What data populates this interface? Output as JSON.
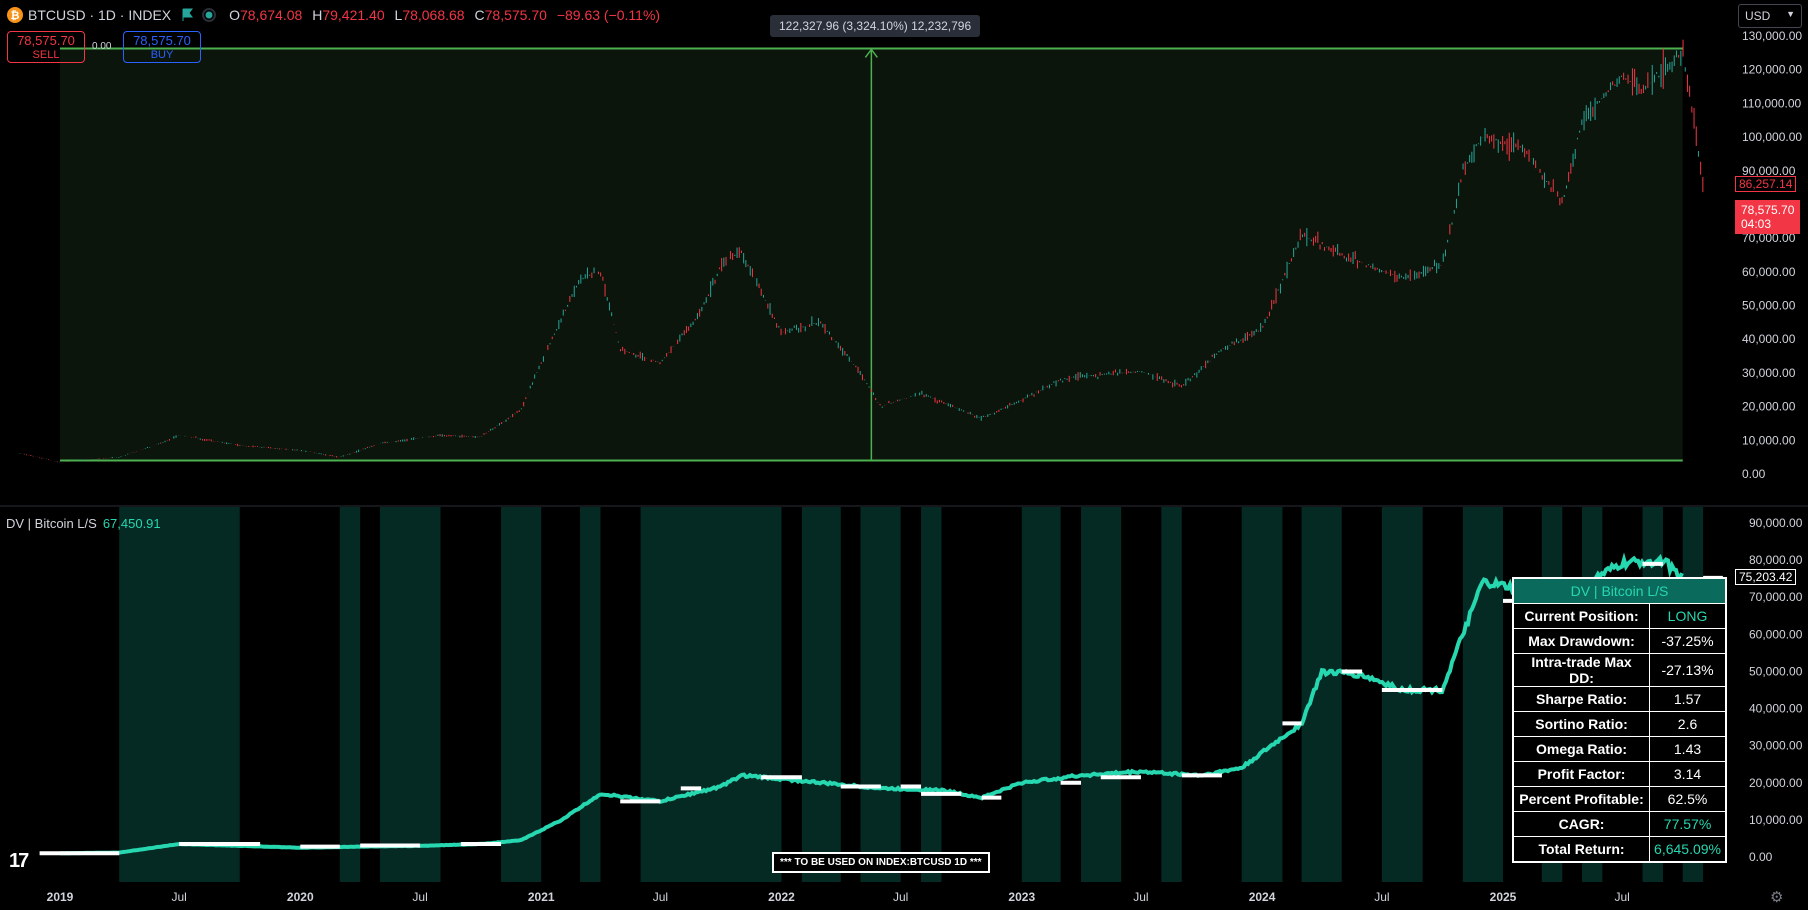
{
  "header": {
    "coin_icon": "bitcoin-icon",
    "symbol": "BTCUSD · 1D · INDEX",
    "flag_icon": "flag-icon",
    "status_icon": "market-status-icon",
    "o_label": "O",
    "o_value": "78,674.08",
    "h_label": "H",
    "h_value": "79,421.40",
    "l_label": "L",
    "l_value": "78,068.68",
    "c_label": "C",
    "c_value": "78,575.70",
    "change": "−89.63 (−0.11%)"
  },
  "trade": {
    "sell_price": "78,575.70",
    "sell_label": "SELL",
    "spread": "0.00",
    "buy_price": "78,575.70",
    "buy_label": "BUY"
  },
  "measure_label": "122,327.96 (3,324.10%) 12,232,796",
  "currency": "USD",
  "price_axis": {
    "ticks": [
      "130,000.00",
      "120,000.00",
      "110,000.00",
      "100,000.00",
      "90,000.00",
      "80,000.00",
      "70,000.00",
      "60,000.00",
      "50,000.00",
      "40,000.00",
      "30,000.00",
      "20,000.00",
      "10,000.00",
      "0.00"
    ],
    "marker_high": "86,257.14",
    "marker_last": "78,575.70",
    "marker_countdown": "04:03"
  },
  "indicator": {
    "name": "DV | Bitcoin L/S",
    "value": "67,450.91",
    "axis_ticks": [
      "90,000.00",
      "80,000.00",
      "70,000.00",
      "60,000.00",
      "50,000.00",
      "40,000.00",
      "30,000.00",
      "20,000.00",
      "10,000.00",
      "0.00"
    ],
    "marker": "75,203.42",
    "note": "*** TO BE USED ON INDEX:BTCUSD 1D ***"
  },
  "stats_table": {
    "title": "DV | Bitcoin L/S",
    "rows": [
      {
        "label": "Current Position:",
        "value": "LONG"
      },
      {
        "label": "Max Drawdown:",
        "value": "-37.25%"
      },
      {
        "label": "Intra-trade Max DD:",
        "value": "-27.13%"
      },
      {
        "label": "Sharpe Ratio:",
        "value": "1.57"
      },
      {
        "label": "Sortino Ratio:",
        "value": "2.6"
      },
      {
        "label": "Omega Ratio:",
        "value": "1.43"
      },
      {
        "label": "Profit Factor:",
        "value": "3.14"
      },
      {
        "label": "Percent Profitable:",
        "value": "62.5%"
      },
      {
        "label": "CAGR:",
        "value": "77.57%"
      },
      {
        "label": "Total Return:",
        "value": "6,645.09%"
      }
    ]
  },
  "time_axis": [
    "2019",
    "Jul",
    "2020",
    "Jul",
    "2021",
    "Jul",
    "2022",
    "Jul",
    "2023",
    "Jul",
    "2024",
    "Jul",
    "2025",
    "Jul"
  ],
  "colors": {
    "up": "#26a69a",
    "down": "#f23645",
    "equity": "#26d7b0",
    "measure": "#4caf50",
    "long_bg": "#052a24"
  },
  "chart_data": [
    {
      "type": "line",
      "title": "BTCUSD · 1D · INDEX",
      "x": [
        "2018-11",
        "2019-01",
        "2019-04",
        "2019-06",
        "2019-07",
        "2019-10",
        "2020-01",
        "2020-03",
        "2020-05",
        "2020-08",
        "2020-10",
        "2020-12",
        "2021-01",
        "2021-03",
        "2021-04",
        "2021-05",
        "2021-07",
        "2021-09",
        "2021-10",
        "2021-11",
        "2022-01",
        "2022-03",
        "2022-05",
        "2022-06",
        "2022-08",
        "2022-11",
        "2023-01",
        "2023-03",
        "2023-04",
        "2023-07",
        "2023-09",
        "2023-11",
        "2024-01",
        "2024-03",
        "2024-05",
        "2024-08",
        "2024-10",
        "2024-11",
        "2024-12",
        "2025-02",
        "2025-04",
        "2025-05",
        "2025-07",
        "2025-08",
        "2025-10",
        "2025-11"
      ],
      "y": [
        6200,
        3500,
        5000,
        9000,
        11500,
        8500,
        7000,
        5000,
        9000,
        11500,
        11000,
        19000,
        33000,
        58000,
        60000,
        37000,
        33000,
        48000,
        62000,
        66000,
        42000,
        45000,
        30000,
        20000,
        24000,
        16500,
        22000,
        28000,
        29000,
        30500,
        26000,
        37000,
        43000,
        71000,
        65000,
        58000,
        62000,
        90000,
        100000,
        97000,
        80000,
        105000,
        118000,
        114000,
        125000,
        86257
      ],
      "ylim": [
        0,
        130000
      ],
      "shaded_range": [
        "2019-01",
        "2025-10"
      ],
      "measure_change": "122,327.96 (3,324.10%) 12,232,796"
    },
    {
      "type": "line",
      "name": "DV | Bitcoin L/S",
      "x": [
        "2019-01",
        "2019-04",
        "2019-07",
        "2019-10",
        "2020-01",
        "2020-04",
        "2020-07",
        "2020-10",
        "2020-12",
        "2021-02",
        "2021-04",
        "2021-07",
        "2021-10",
        "2021-11",
        "2022-01",
        "2022-06",
        "2022-09",
        "2022-11",
        "2023-01",
        "2023-04",
        "2023-07",
        "2023-10",
        "2023-12",
        "2024-03",
        "2024-04",
        "2024-06",
        "2024-08",
        "2024-10",
        "2024-11",
        "2024-12",
        "2025-04",
        "2025-07",
        "2025-09",
        "2025-10"
      ],
      "y": [
        1000,
        1200,
        3500,
        3000,
        2500,
        2800,
        3000,
        3500,
        4500,
        10000,
        17000,
        15000,
        19000,
        22000,
        21000,
        18500,
        18000,
        16000,
        20000,
        22000,
        23000,
        22000,
        24000,
        36000,
        50000,
        49000,
        45000,
        45000,
        60000,
        74000,
        70000,
        79000,
        80000,
        75203
      ],
      "ylim": [
        0,
        90000
      ]
    }
  ]
}
